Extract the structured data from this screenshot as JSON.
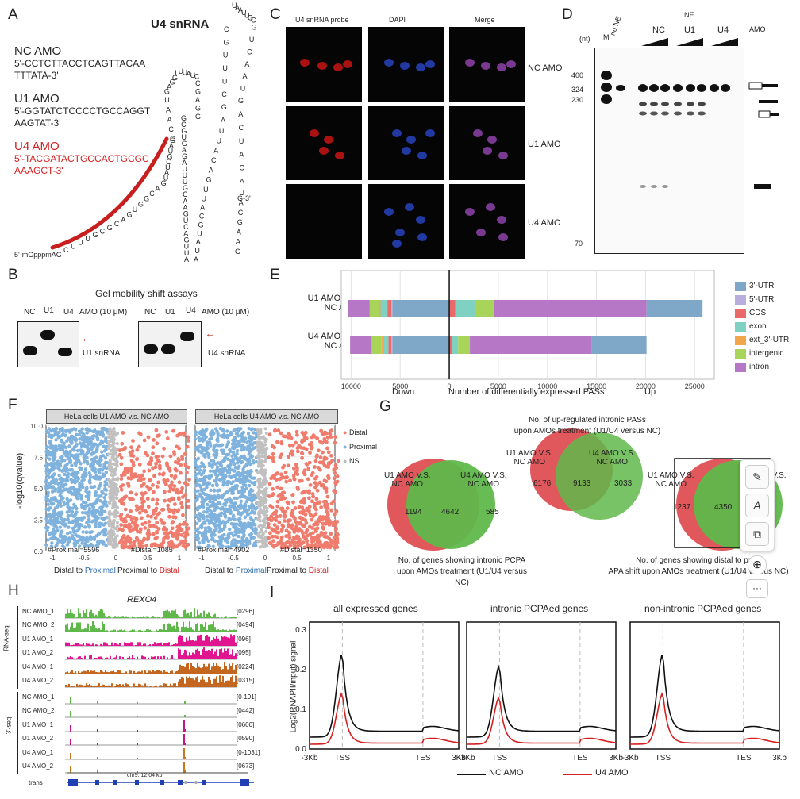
{
  "panels": {
    "A": "A",
    "B": "B",
    "C": "C",
    "D": "D",
    "E": "E",
    "F": "F",
    "G": "G",
    "H": "H",
    "I": "I"
  },
  "A": {
    "title": "U4 snRNA",
    "nc_amo": {
      "name": "NC AMO",
      "seq1": "5'-CCTCTTACCTCAGTTACAA",
      "seq2": "TTTATA-3'"
    },
    "u1_amo": {
      "name": "U1 AMO",
      "seq1": "5'-GGTATCTCCCCTGCCAGGT",
      "seq2": "AAGTAT-3'"
    },
    "u4_amo": {
      "name": "U4 AMO",
      "seq1": "5'-TACGATACTGCCACTGCGC",
      "seq2": "AAAGCT-3'"
    },
    "cap": "5'-mGpppmAG",
    "end3": "G-3'",
    "stem1_seq": "CUUUGCGCAGUGGCAGUAUCGUAG",
    "loop1_seq": "CCAAUGAGGUUUAUCCGAGG",
    "stem2_seq": "GCGUGAGAUUUGCAAGUCAGUUA",
    "loop2_seq": "AUAUGCAUUGACAUUAGCUUUGC",
    "stem3_seq": "UAAUUGCGUCAAUGACUACAUACGAAG"
  },
  "B": {
    "title": "Gel mobility shift assays",
    "lanes": [
      "NC",
      "U1",
      "U4"
    ],
    "amo": "AMO (10 μM)",
    "left_label": "U1 snRNA",
    "right_label": "U4 snRNA"
  },
  "C": {
    "cols": [
      "U4 snRNA probe",
      "DAPI",
      "Merge"
    ],
    "rows": [
      "NC AMO",
      "U1 AMO",
      "U4 AMO"
    ]
  },
  "D": {
    "nt": "(nt)",
    "lane_m": "M",
    "lane_none": "no NE",
    "ne": "NE",
    "groups": [
      "NC",
      "U1",
      "U4"
    ],
    "amo": "AMO",
    "markers": [
      "400",
      "324",
      "230",
      "70"
    ]
  },
  "E": {
    "rows": [
      "U1 AMO V.S.",
      "NC AMO",
      "U4 AMO V.S.",
      "NC AMO"
    ],
    "xticks": [
      "10000",
      "5000",
      "0",
      "5000",
      "10000",
      "15000",
      "20000",
      "25000"
    ],
    "xdown": "Down",
    "xlabel": "Number of differentially expressed PASs",
    "xup": "Up",
    "legend": [
      "3'-UTR",
      "5'-UTR",
      "CDS",
      "exon",
      "ext_3'-UTR",
      "intergenic",
      "intron"
    ],
    "colors": [
      "#7ea7c8",
      "#b8aedb",
      "#ea6a6a",
      "#7fd1c2",
      "#f0a64a",
      "#a8d45a",
      "#b678c6"
    ]
  },
  "chart_data": {
    "type": "bar",
    "title": "Number of differentially expressed PASs",
    "categories": [
      "U1 AMO V.S. NC AMO",
      "U4 AMO V.S. NC AMO"
    ],
    "xlim": [
      -10000,
      25000
    ],
    "series": [
      {
        "name": "3'-UTR",
        "down": [
          5800,
          5800
        ],
        "up": [
          0,
          0
        ]
      },
      {
        "name": "5'-UTR",
        "down": [
          100,
          100
        ],
        "up": [
          0,
          0
        ]
      },
      {
        "name": "CDS",
        "down": [
          400,
          300
        ],
        "up": [
          600,
          300
        ]
      },
      {
        "name": "exon",
        "down": [
          700,
          600
        ],
        "up": [
          2000,
          600
        ]
      },
      {
        "name": "ext_3'-UTR",
        "down": [
          200,
          100
        ],
        "up": [
          0,
          0
        ]
      },
      {
        "name": "intergenic",
        "down": [
          900,
          1000
        ],
        "up": [
          2000,
          1200
        ]
      },
      {
        "name": "intron",
        "down": [
          2200,
          2200
        ],
        "up": [
          15500,
          12400
        ]
      },
      {
        "name": "3'-UTR (up tail)",
        "down": [
          0,
          0
        ],
        "up": [
          5700,
          5600
        ]
      }
    ]
  },
  "F": {
    "left_title": "HeLa cells U1 AMO v.s. NC AMO",
    "right_title": "HeLa cells U4 AMO v.s. NC AMO",
    "ylabel": "-log10(qvalue)",
    "yticks": [
      "10.0",
      "7.5",
      "5.0",
      "2.5",
      "0.0"
    ],
    "xticks": [
      "-1",
      "-0.5",
      "0",
      "0.5",
      "1"
    ],
    "left_stats": [
      "#Proximal=5596",
      "#Distal=1085"
    ],
    "right_stats": [
      "#Proximal=4902",
      "#Distal=1350"
    ],
    "x_left_label": "Distal to",
    "x_left_blue": "Proximal",
    "x_right_label": "Proximal to",
    "x_right_red": "Distal",
    "legend": [
      "Distal",
      "Proximal",
      "NS"
    ],
    "colors": {
      "distal": "#f07c6e",
      "proximal": "#7fb2dd",
      "ns": "#c0c0c0"
    }
  },
  "G": {
    "v1": {
      "a": "U1 AMO V.S.",
      "a2": "NC AMO",
      "b": "U4 AMO V.S.",
      "b2": "NC AMO",
      "left": "1194",
      "mid": "4642",
      "right": "585",
      "cap1": "No. of genes showing intronic PCPA",
      "cap2": "upon AMOs treatment (U1/U4 versus NC)"
    },
    "v2": {
      "a": "U1 AMO V.S.",
      "a2": "NC AMO",
      "b": "U4 AMO V.S.",
      "b2": "NC AMO",
      "left": "6176",
      "mid": "9133",
      "right": "3033",
      "cap1": "No. of up-regulated intronic PASs",
      "cap2": "upon AMOs treatment (U1/U4 versus NC)"
    },
    "v3": {
      "a": "U1 AMO V.S.",
      "a2": "NC AMO",
      "b": "U4 AMO V.S.",
      "b2": "AMO",
      "left": "1237",
      "mid": "4350",
      "right": "51",
      "cap1": "No. of genes showing distal to proxi",
      "cap2": "APA shift upon AMOs treatment (U1/U4 versus NC)"
    },
    "colors": {
      "red": "#e0575c",
      "green": "#5fb84a"
    }
  },
  "H": {
    "gene": "REXO4",
    "rna_label": "RNA-seq",
    "three_label": "3'-seq",
    "tracks": [
      {
        "name": "NC AMO_1",
        "range": "[0296]"
      },
      {
        "name": "NC AMO_2",
        "range": "[0494]"
      },
      {
        "name": "U1 AMO_1",
        "range": "[096]"
      },
      {
        "name": "U1 AMO_2",
        "range": "[095]"
      },
      {
        "name": "U4 AMO_1",
        "range": "[0224]"
      },
      {
        "name": "U4 AMO_2",
        "range": "[0315]"
      },
      {
        "name": "NC AMO_1",
        "range": "[0-191]"
      },
      {
        "name": "NC AMO_2",
        "range": "[0442]"
      },
      {
        "name": "U1 AMO_1",
        "range": "[0600]"
      },
      {
        "name": "U1 AMO_2",
        "range": "[0590]"
      },
      {
        "name": "U4 AMO_1",
        "range": "[0-1031]"
      },
      {
        "name": "U4 AMO_2",
        "range": "[0673]"
      }
    ],
    "trans": "trans",
    "scale": "chr9: 12.04 kb"
  },
  "I": {
    "titles": [
      "all expressed genes",
      "intronic PCPAed genes",
      "non-intronic PCPAed genes"
    ],
    "ylabel": "Log2(RNAPII/input) signal",
    "yticks": [
      "0.3",
      "0.2",
      "0.1",
      "0.0"
    ],
    "xticks": [
      "-3Kb",
      "TSS",
      "TES",
      "3Kb"
    ],
    "legend": [
      "NC AMO",
      "U4 AMO"
    ],
    "colors": {
      "nc": "#111111",
      "u4": "#d42020"
    }
  },
  "toolbar": {
    "icons": [
      "image-edit-icon",
      "text-edit-icon",
      "shape-replace-icon"
    ],
    "zoom": "zoom-in-icon",
    "more": "more-options-icon",
    "more_label": "···"
  }
}
